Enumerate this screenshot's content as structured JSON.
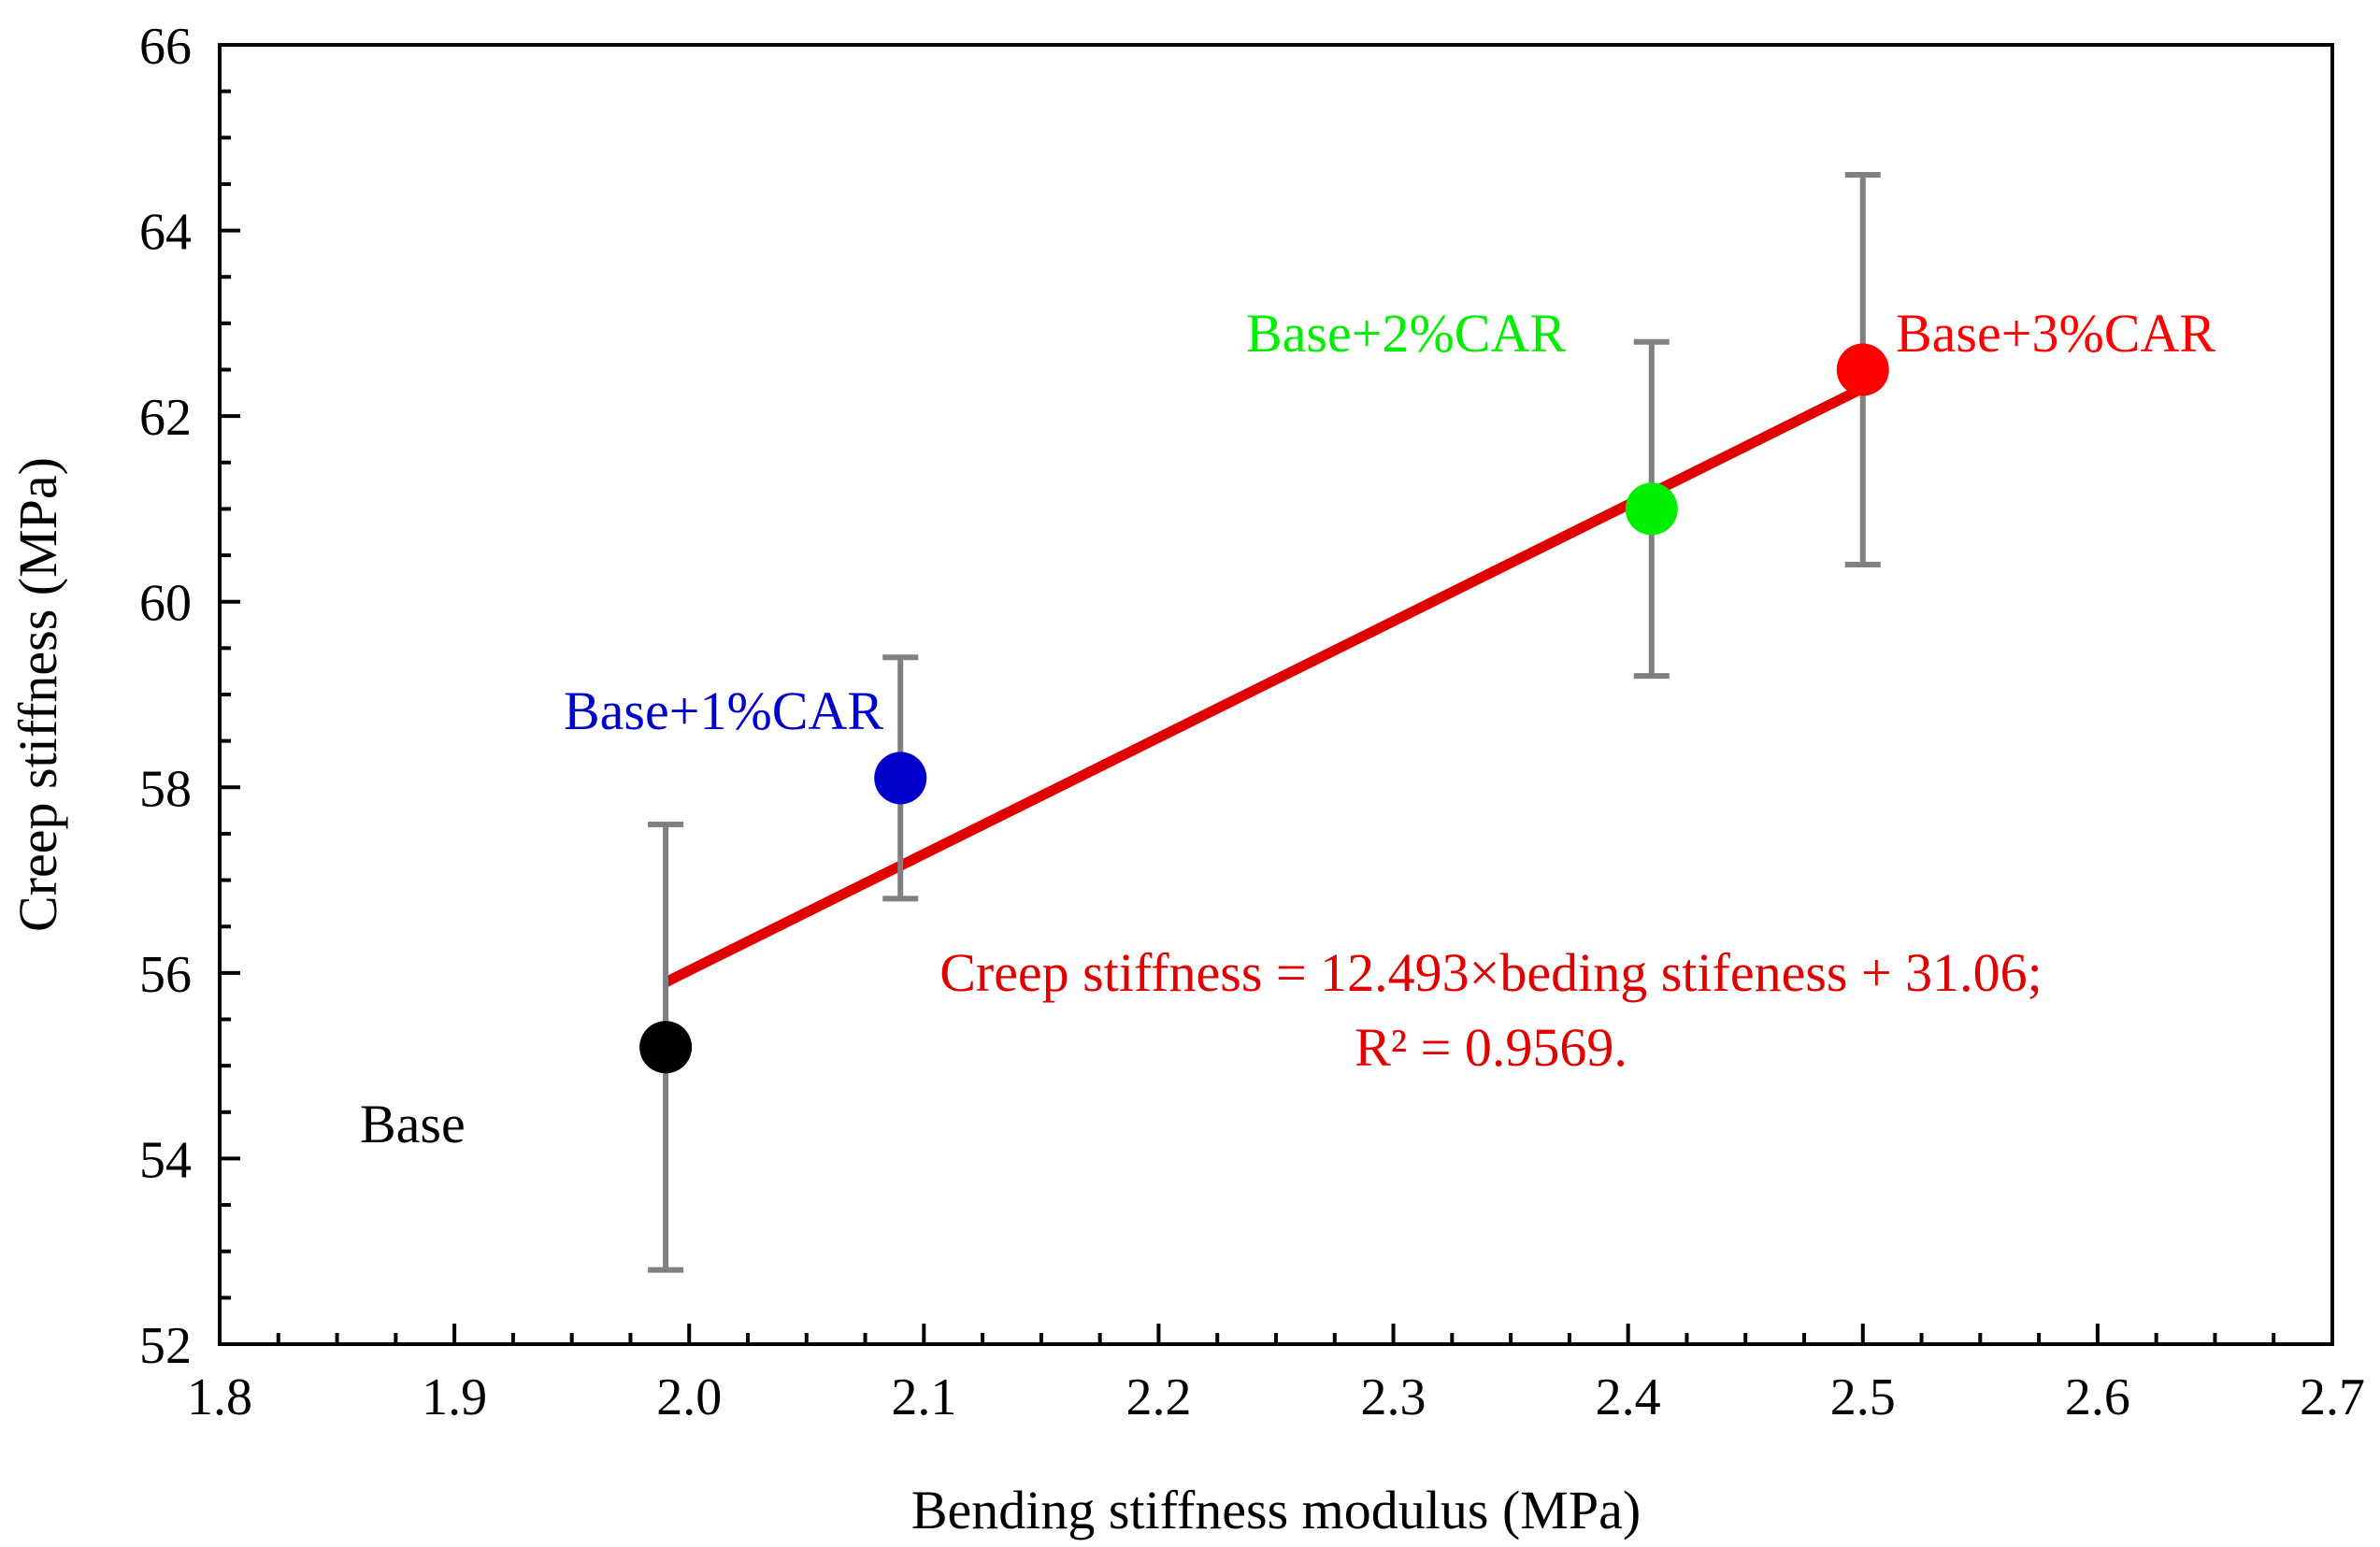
{
  "chart_data": {
    "type": "scatter",
    "xlabel": "Bending stiffness modulus (MPa)",
    "ylabel": "Creep stiffness (MPa)",
    "xlim": [
      1.8,
      2.7
    ],
    "ylim": [
      52,
      66
    ],
    "x_major_ticks": [
      1.8,
      1.9,
      2.0,
      2.1,
      2.2,
      2.3,
      2.4,
      2.5,
      2.6,
      2.7
    ],
    "x_tick_labels": [
      "1.8",
      "1.9",
      "2.0",
      "2.1",
      "2.2",
      "2.3",
      "2.4",
      "2.5",
      "2.6",
      "2.7"
    ],
    "y_major_ticks": [
      52,
      54,
      56,
      58,
      60,
      62,
      64,
      66
    ],
    "y_tick_labels": [
      "52",
      "54",
      "56",
      "58",
      "60",
      "62",
      "64",
      "66"
    ],
    "grid": false,
    "series": [
      {
        "name": "Base",
        "x": 1.99,
        "y": 55.2,
        "error": 2.4,
        "color": "#000000",
        "label_color": "#000000"
      },
      {
        "name": "Base+1%CAR",
        "x": 2.09,
        "y": 58.1,
        "error": 1.3,
        "color": "#0000cc",
        "label_color": "#0000cc"
      },
      {
        "name": "Base+2%CAR",
        "x": 2.41,
        "y": 61.0,
        "error": 1.8,
        "color": "#00ee00",
        "label_color": "#00ee00"
      },
      {
        "name": "Base+3%CAR",
        "x": 2.5,
        "y": 62.5,
        "error": 2.1,
        "color": "#ff0000",
        "label_color": "#ff0000"
      }
    ],
    "error_bar_color": "#808080",
    "fit_line": {
      "x": [
        1.99,
        2.5
      ],
      "y": [
        55.9,
        62.3
      ],
      "color": "#e00000"
    },
    "equation_lines": [
      "Creep stiffness = 12.493×beding stifeness + 31.06;",
      "R² = 0.9569."
    ],
    "equation_color": "#e00000"
  }
}
